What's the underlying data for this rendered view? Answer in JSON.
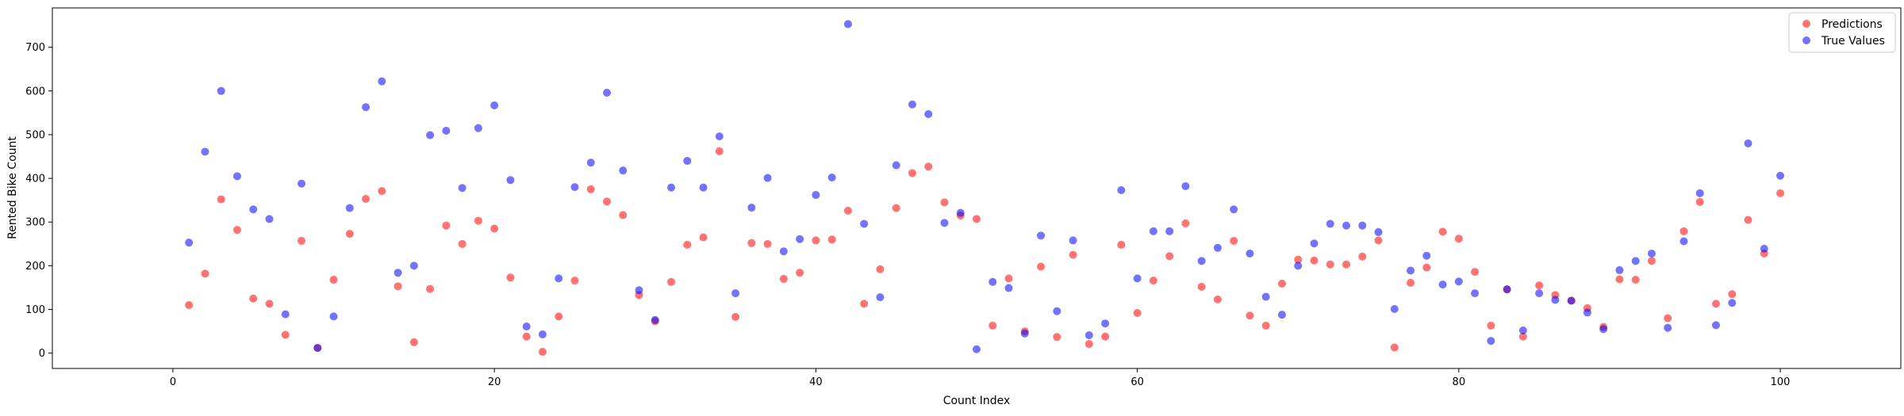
{
  "chart_data": {
    "type": "scatter",
    "title": "",
    "xlabel": "Count Index",
    "ylabel": "Rented Bike Count",
    "xlim": [
      -7.5,
      107.5
    ],
    "ylim": [
      -35,
      790
    ],
    "xticks": [
      0,
      20,
      40,
      60,
      80,
      100
    ],
    "yticks": [
      0,
      100,
      200,
      300,
      400,
      500,
      600,
      700
    ],
    "grid": false,
    "legend_placement": "top-right",
    "series": [
      {
        "name": "Predictions",
        "color": "#ff0000",
        "x": [
          1,
          2,
          3,
          4,
          5,
          6,
          7,
          8,
          9,
          10,
          11,
          12,
          13,
          14,
          15,
          16,
          17,
          18,
          19,
          20,
          21,
          22,
          23,
          24,
          25,
          26,
          27,
          28,
          29,
          30,
          31,
          32,
          33,
          34,
          35,
          36,
          37,
          38,
          39,
          40,
          41,
          42,
          43,
          44,
          45,
          46,
          47,
          48,
          49,
          50,
          51,
          52,
          53,
          54,
          55,
          56,
          57,
          58,
          59,
          60,
          61,
          62,
          63,
          64,
          65,
          66,
          67,
          68,
          69,
          70,
          71,
          72,
          73,
          74,
          75,
          76,
          77,
          78,
          79,
          80,
          81,
          82,
          83,
          84,
          85,
          86,
          87,
          88,
          89,
          90,
          91,
          92,
          93,
          94,
          95,
          96,
          97,
          98,
          99,
          100
        ],
        "y": [
          110,
          182,
          352,
          282,
          125,
          113,
          42,
          257,
          12,
          168,
          273,
          353,
          371,
          153,
          25,
          147,
          292,
          250,
          303,
          285,
          173,
          38,
          3,
          84,
          166,
          375,
          347,
          316,
          133,
          73,
          163,
          248,
          265,
          462,
          83,
          252,
          250,
          170,
          184,
          258,
          260,
          326,
          113,
          192,
          332,
          412,
          427,
          345,
          315,
          307,
          63,
          171,
          50,
          198,
          37,
          225,
          21,
          38,
          248,
          92,
          166,
          222,
          297,
          152,
          123,
          257,
          86,
          63,
          159,
          214,
          212,
          203,
          203,
          221,
          258,
          13,
          161,
          196,
          278,
          262,
          186,
          63,
          146,
          38,
          155,
          133,
          120,
          103,
          60,
          169,
          168,
          211,
          80,
          279,
          346,
          113,
          135,
          305,
          228,
          366
        ]
      },
      {
        "name": "True Values",
        "color": "#0000ff",
        "x": [
          1,
          2,
          3,
          4,
          5,
          6,
          7,
          8,
          9,
          10,
          11,
          12,
          13,
          14,
          15,
          16,
          17,
          18,
          19,
          20,
          21,
          22,
          23,
          24,
          25,
          26,
          27,
          28,
          29,
          30,
          31,
          32,
          33,
          34,
          35,
          36,
          37,
          38,
          39,
          40,
          41,
          42,
          43,
          44,
          45,
          46,
          47,
          48,
          49,
          50,
          51,
          52,
          53,
          54,
          55,
          56,
          57,
          58,
          59,
          60,
          61,
          62,
          63,
          64,
          65,
          66,
          67,
          68,
          69,
          70,
          71,
          72,
          73,
          74,
          75,
          76,
          77,
          78,
          79,
          80,
          81,
          82,
          83,
          84,
          85,
          86,
          87,
          88,
          89,
          90,
          91,
          92,
          93,
          94,
          95,
          96,
          97,
          98,
          99,
          100
        ],
        "y": [
          253,
          461,
          600,
          405,
          329,
          307,
          89,
          388,
          12,
          84,
          332,
          563,
          622,
          184,
          200,
          499,
          509,
          378,
          515,
          567,
          396,
          61,
          43,
          171,
          380,
          436,
          596,
          418,
          144,
          76,
          379,
          440,
          379,
          496,
          137,
          333,
          401,
          233,
          261,
          362,
          402,
          753,
          296,
          128,
          430,
          569,
          547,
          298,
          321,
          9,
          163,
          149,
          45,
          269,
          96,
          258,
          41,
          68,
          373,
          171,
          279,
          279,
          382,
          211,
          241,
          329,
          228,
          129,
          88,
          200,
          251,
          296,
          292,
          292,
          277,
          101,
          189,
          223,
          157,
          164,
          137,
          28,
          146,
          52,
          137,
          122,
          120,
          93,
          55,
          190,
          211,
          228,
          58,
          256,
          366,
          64,
          115,
          480,
          239,
          406
        ]
      }
    ]
  }
}
